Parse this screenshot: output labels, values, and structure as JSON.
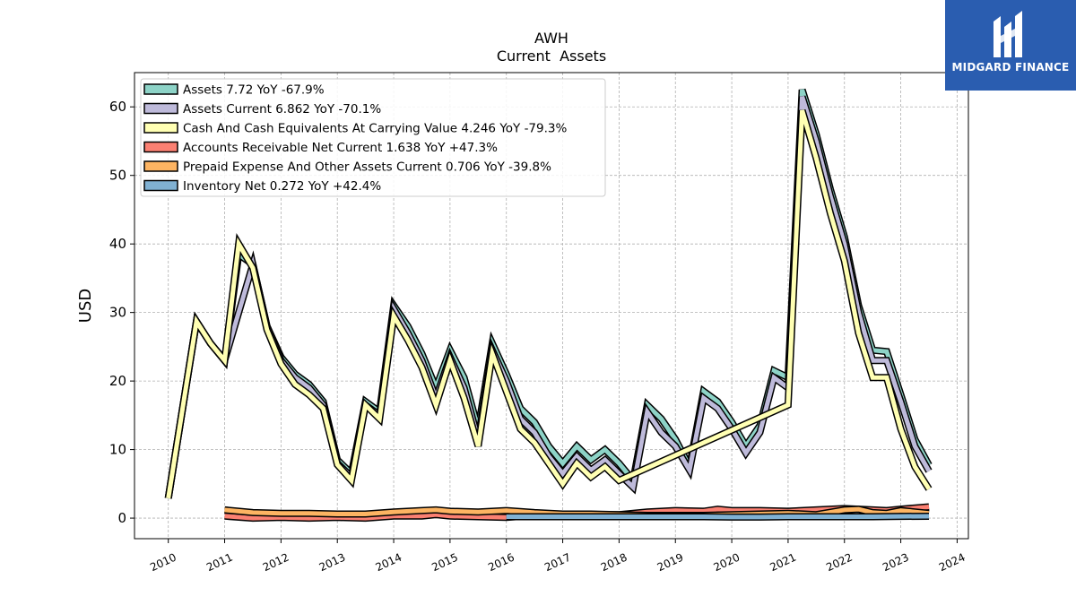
{
  "header": {
    "ticker": "AWH",
    "subtitle": "Current  Assets"
  },
  "logo": {
    "name": "MIDGARD FINANCE",
    "background": "#2a5db0"
  },
  "chart_data": {
    "type": "area",
    "ylabel": "USD",
    "xlabel": "",
    "ylim": [
      -3,
      65
    ],
    "xlim": [
      2009.4,
      2024.2
    ],
    "yticks": [
      0,
      10,
      20,
      30,
      40,
      50,
      60
    ],
    "xticks": [
      "2010",
      "2011",
      "2012",
      "2013",
      "2014",
      "2015",
      "2016",
      "2017",
      "2018",
      "2019",
      "2020",
      "2021",
      "2022",
      "2023",
      "2024"
    ],
    "grid": true,
    "legend_position": "top-left",
    "series": [
      {
        "name": "Assets  7.72 YoY -67.9%",
        "color": "#8dd3c7",
        "points": [
          [
            2010.0,
            2.9
          ],
          [
            2010.5,
            28.7
          ],
          [
            2010.75,
            25.5
          ],
          [
            2011.0,
            23.0
          ],
          [
            2011.25,
            38.5
          ],
          [
            2011.5,
            37.0
          ],
          [
            2011.75,
            28.0
          ],
          [
            2012.0,
            23.5
          ],
          [
            2012.25,
            21.0
          ],
          [
            2012.5,
            19.5
          ],
          [
            2012.75,
            17.0
          ],
          [
            2013.0,
            8.5
          ],
          [
            2013.25,
            6.5
          ],
          [
            2013.5,
            17.0
          ],
          [
            2013.75,
            15.5
          ],
          [
            2014.0,
            31.0
          ],
          [
            2014.25,
            28.0
          ],
          [
            2014.5,
            24.0
          ],
          [
            2014.75,
            19.0
          ],
          [
            2015.0,
            24.5
          ],
          [
            2015.25,
            20.5
          ],
          [
            2015.5,
            13.0
          ],
          [
            2015.75,
            25.5
          ],
          [
            2016.0,
            21.0
          ],
          [
            2016.25,
            16.0
          ],
          [
            2016.5,
            14.0
          ],
          [
            2016.75,
            10.5
          ],
          [
            2017.0,
            8.0
          ],
          [
            2017.25,
            10.5
          ],
          [
            2017.5,
            8.5
          ],
          [
            2017.75,
            10.0
          ],
          [
            2018.0,
            8.0
          ],
          [
            2018.25,
            5.5
          ],
          [
            2018.5,
            16.5
          ],
          [
            2018.75,
            14.5
          ],
          [
            2019.0,
            11.5
          ],
          [
            2019.25,
            7.5
          ],
          [
            2019.5,
            18.5
          ],
          [
            2019.75,
            17.0
          ],
          [
            2020.0,
            14.0
          ],
          [
            2020.25,
            10.5
          ],
          [
            2020.5,
            13.5
          ],
          [
            2020.75,
            21.5
          ],
          [
            2021.0,
            20.5
          ],
          [
            2021.25,
            62.5
          ],
          [
            2021.5,
            56.0
          ],
          [
            2021.75,
            48.0
          ],
          [
            2022.0,
            41.0
          ],
          [
            2022.25,
            31.0
          ],
          [
            2022.5,
            24.5
          ],
          [
            2022.75,
            24.3
          ],
          [
            2023.0,
            18.0
          ],
          [
            2023.25,
            11.5
          ],
          [
            2023.5,
            7.72
          ]
        ]
      },
      {
        "name": "Assets Current  6.862 YoY -70.1%",
        "color": "#bebada",
        "points": [
          [
            2010.0,
            2.9
          ],
          [
            2010.5,
            28.7
          ],
          [
            2010.75,
            25.5
          ],
          [
            2011.0,
            23.0
          ],
          [
            2011.25,
            30.0
          ],
          [
            2011.5,
            37.0
          ],
          [
            2011.75,
            28.0
          ],
          [
            2012.0,
            23.0
          ],
          [
            2012.25,
            20.5
          ],
          [
            2012.5,
            19.0
          ],
          [
            2012.75,
            16.5
          ],
          [
            2013.0,
            8.0
          ],
          [
            2013.25,
            6.0
          ],
          [
            2013.5,
            16.5
          ],
          [
            2013.75,
            15.0
          ],
          [
            2014.0,
            30.5
          ],
          [
            2014.25,
            27.0
          ],
          [
            2014.5,
            23.0
          ],
          [
            2014.75,
            17.5
          ],
          [
            2015.0,
            23.5
          ],
          [
            2015.25,
            19.0
          ],
          [
            2015.5,
            11.5
          ],
          [
            2015.75,
            24.5
          ],
          [
            2016.0,
            20.0
          ],
          [
            2016.25,
            14.5
          ],
          [
            2016.5,
            12.5
          ],
          [
            2016.75,
            9.0
          ],
          [
            2017.0,
            6.5
          ],
          [
            2017.25,
            9.0
          ],
          [
            2017.5,
            7.0
          ],
          [
            2017.75,
            8.5
          ],
          [
            2018.0,
            6.5
          ],
          [
            2018.25,
            4.5
          ],
          [
            2018.5,
            15.5
          ],
          [
            2018.75,
            12.5
          ],
          [
            2019.0,
            10.5
          ],
          [
            2019.25,
            7.0
          ],
          [
            2019.5,
            17.5
          ],
          [
            2019.75,
            16.0
          ],
          [
            2020.0,
            13.0
          ],
          [
            2020.25,
            9.5
          ],
          [
            2020.5,
            12.5
          ],
          [
            2020.75,
            20.5
          ],
          [
            2021.0,
            19.0
          ],
          [
            2021.25,
            61.5
          ],
          [
            2021.5,
            55.0
          ],
          [
            2021.75,
            47.0
          ],
          [
            2022.0,
            40.0
          ],
          [
            2022.25,
            30.0
          ],
          [
            2022.5,
            23.0
          ],
          [
            2022.75,
            23.0
          ],
          [
            2023.0,
            17.0
          ],
          [
            2023.25,
            10.5
          ],
          [
            2023.5,
            6.862
          ]
        ]
      },
      {
        "name": "Cash And Cash Equivalents At Carrying Value  4.246 YoY -79.3%",
        "color": "#ffffb3",
        "points": [
          [
            2010.0,
            2.9
          ],
          [
            2010.5,
            28.7
          ],
          [
            2010.75,
            25.5
          ],
          [
            2011.0,
            23.0
          ],
          [
            2011.25,
            40.0
          ],
          [
            2011.5,
            36.5
          ],
          [
            2011.75,
            27.5
          ],
          [
            2012.0,
            22.5
          ],
          [
            2012.25,
            19.5
          ],
          [
            2012.5,
            18.0
          ],
          [
            2012.75,
            16.0
          ],
          [
            2013.0,
            7.8
          ],
          [
            2013.25,
            5.5
          ],
          [
            2013.5,
            16.5
          ],
          [
            2013.75,
            14.5
          ],
          [
            2014.0,
            29.5
          ],
          [
            2014.25,
            26.0
          ],
          [
            2014.5,
            22.0
          ],
          [
            2014.75,
            16.5
          ],
          [
            2015.0,
            23.0
          ],
          [
            2015.25,
            17.5
          ],
          [
            2015.5,
            10.5
          ],
          [
            2015.75,
            24.0
          ],
          [
            2016.0,
            18.5
          ],
          [
            2016.25,
            13.0
          ],
          [
            2016.5,
            11.0
          ],
          [
            2016.75,
            8.0
          ],
          [
            2017.0,
            5.0
          ],
          [
            2017.25,
            8.0
          ],
          [
            2017.5,
            6.0
          ],
          [
            2017.75,
            7.5
          ],
          [
            2018.0,
            5.5
          ],
          [
            2021.0,
            16.5
          ],
          [
            2021.25,
            59.5
          ],
          [
            2021.5,
            52.5
          ],
          [
            2021.75,
            44.5
          ],
          [
            2022.0,
            37.5
          ],
          [
            2022.25,
            27.0
          ],
          [
            2022.5,
            20.5
          ],
          [
            2022.75,
            20.5
          ],
          [
            2023.0,
            13.0
          ],
          [
            2023.25,
            7.5
          ],
          [
            2023.5,
            4.246
          ]
        ]
      },
      {
        "name": "Accounts Receivable Net Current  1.638 YoY +47.3%",
        "color": "#fb8072",
        "points": [
          [
            2011.0,
            0.3
          ],
          [
            2011.5,
            0.0
          ],
          [
            2012.0,
            0.1
          ],
          [
            2012.5,
            0.0
          ],
          [
            2013.0,
            0.1
          ],
          [
            2013.5,
            0.0
          ],
          [
            2014.0,
            0.3
          ],
          [
            2014.5,
            0.3
          ],
          [
            2014.75,
            0.5
          ],
          [
            2015.0,
            0.3
          ],
          [
            2015.5,
            0.2
          ],
          [
            2016.0,
            0.1
          ],
          [
            2016.5,
            0.4
          ],
          [
            2017.0,
            0.6
          ],
          [
            2017.5,
            0.5
          ],
          [
            2018.0,
            0.5
          ],
          [
            2018.5,
            0.9
          ],
          [
            2019.0,
            1.1
          ],
          [
            2019.5,
            1.0
          ],
          [
            2019.75,
            1.3
          ],
          [
            2020.0,
            1.1
          ],
          [
            2020.5,
            1.1
          ],
          [
            2021.0,
            1.0
          ],
          [
            2021.5,
            1.2
          ],
          [
            2022.0,
            1.4
          ],
          [
            2022.5,
            1.2
          ],
          [
            2022.75,
            1.1
          ],
          [
            2023.0,
            1.3
          ],
          [
            2023.5,
            1.638
          ]
        ]
      },
      {
        "name": "Prepaid Expense And Other Assets Current  0.706 YoY -39.8%",
        "color": "#fdb462",
        "points": [
          [
            2011.0,
            1.2
          ],
          [
            2011.5,
            0.8
          ],
          [
            2012.0,
            0.7
          ],
          [
            2012.5,
            0.7
          ],
          [
            2013.0,
            0.6
          ],
          [
            2013.5,
            0.6
          ],
          [
            2014.0,
            0.9
          ],
          [
            2014.5,
            1.1
          ],
          [
            2014.75,
            1.2
          ],
          [
            2015.0,
            1.0
          ],
          [
            2015.5,
            0.9
          ],
          [
            2016.0,
            1.1
          ],
          [
            2016.5,
            0.8
          ],
          [
            2017.0,
            0.6
          ],
          [
            2017.5,
            0.6
          ],
          [
            2018.0,
            0.5
          ],
          [
            2018.5,
            0.4
          ],
          [
            2019.0,
            0.4
          ],
          [
            2019.5,
            0.4
          ],
          [
            2020.0,
            0.5
          ],
          [
            2020.5,
            0.6
          ],
          [
            2021.0,
            0.7
          ],
          [
            2021.5,
            0.5
          ],
          [
            2022.0,
            1.2
          ],
          [
            2022.25,
            1.3
          ],
          [
            2022.5,
            0.8
          ],
          [
            2022.75,
            0.7
          ],
          [
            2023.0,
            1.1
          ],
          [
            2023.5,
            0.706
          ]
        ]
      },
      {
        "name": "Inventory Net  0.272 YoY +42.4%",
        "color": "#80b1d3",
        "points": [
          [
            2016.0,
            0.2
          ],
          [
            2016.5,
            0.2
          ],
          [
            2017.0,
            0.2
          ],
          [
            2017.5,
            0.2
          ],
          [
            2018.0,
            0.2
          ],
          [
            2018.5,
            0.2
          ],
          [
            2019.0,
            0.2
          ],
          [
            2019.5,
            0.2
          ],
          [
            2020.0,
            0.15
          ],
          [
            2020.5,
            0.15
          ],
          [
            2021.0,
            0.2
          ],
          [
            2021.5,
            0.2
          ],
          [
            2022.0,
            0.2
          ],
          [
            2022.5,
            0.2
          ],
          [
            2023.0,
            0.25
          ],
          [
            2023.5,
            0.272
          ]
        ]
      }
    ]
  }
}
